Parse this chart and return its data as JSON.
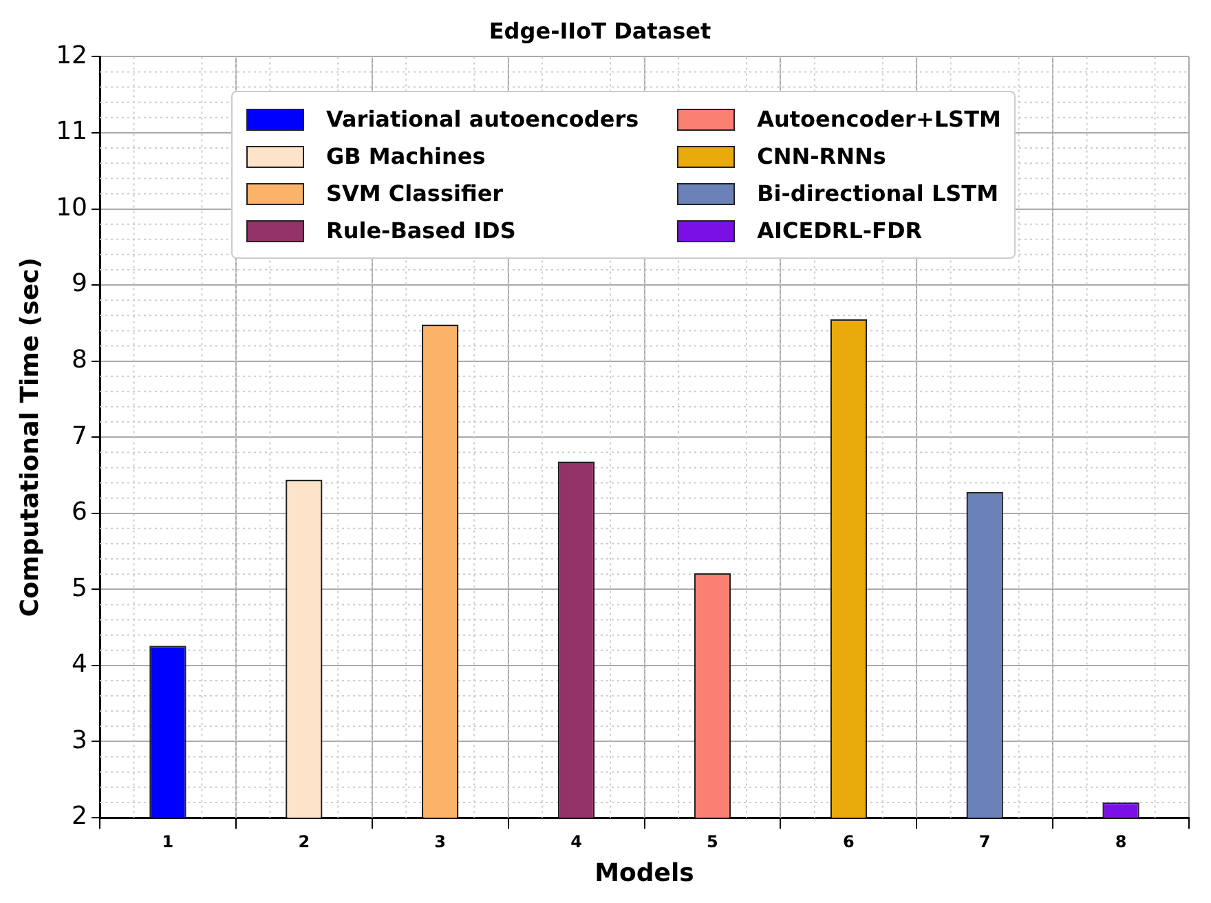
{
  "chart_data": {
    "type": "bar",
    "title": "Edge-IIoT Dataset",
    "xlabel": "Models",
    "ylabel": "Computational Time (sec)",
    "categories": [
      "1",
      "2",
      "3",
      "4",
      "5",
      "6",
      "7",
      "8"
    ],
    "series": [
      {
        "name": "Variational autoencoders",
        "color": "#0000ff",
        "values": [
          4.26,
          null,
          null,
          null,
          null,
          null,
          null,
          null
        ]
      },
      {
        "name": "GB Machines",
        "color": "#fde3c8",
        "values": [
          null,
          6.44,
          null,
          null,
          null,
          null,
          null,
          null
        ]
      },
      {
        "name": "SVM Classifier",
        "color": "#fbb369",
        "values": [
          null,
          null,
          8.48,
          null,
          null,
          null,
          null,
          null
        ]
      },
      {
        "name": "Rule-Based IDS",
        "color": "#933369",
        "values": [
          null,
          null,
          null,
          6.68,
          null,
          null,
          null,
          null
        ]
      },
      {
        "name": "Autoencoder+LSTM",
        "color": "#fa8072",
        "values": [
          null,
          null,
          null,
          null,
          5.21,
          null,
          null,
          null
        ]
      },
      {
        "name": "CNN-RNNs",
        "color": "#e9ab0c",
        "values": [
          null,
          null,
          null,
          null,
          null,
          8.55,
          null,
          null
        ]
      },
      {
        "name": "Bi-directional LSTM",
        "color": "#6a82b8",
        "values": [
          null,
          null,
          null,
          null,
          null,
          null,
          6.28,
          null
        ]
      },
      {
        "name": "AICEDRL-FDR",
        "color": "#7a10e6",
        "values": [
          null,
          null,
          null,
          null,
          null,
          null,
          null,
          2.2
        ]
      }
    ],
    "ylim": [
      2,
      12
    ],
    "yticks": [
      2,
      3,
      4,
      5,
      6,
      7,
      8,
      9,
      10,
      11,
      12
    ],
    "grid": true,
    "legend": "top"
  }
}
